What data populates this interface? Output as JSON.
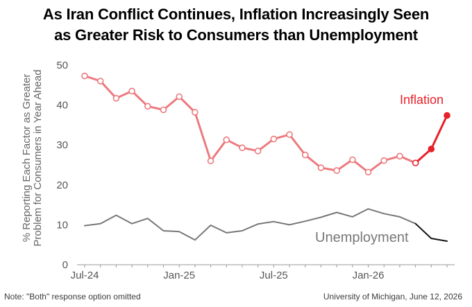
{
  "title": {
    "line1": "As Iran Conflict Continues, Inflation Increasingly Seen",
    "line2": "as Greater Risk to Consumers than Unemployment"
  },
  "footer": {
    "note": "Note: \"Both\" response option omitted",
    "source": "University of Michigan, June 12, 2026"
  },
  "chart_data": {
    "type": "line",
    "ylabel": [
      "% Reporting Each Factor as Greater",
      "Problem for Consumers in Year Ahead"
    ],
    "xlabel": "",
    "ylim": [
      0,
      50
    ],
    "yticks": [
      0,
      10,
      20,
      30,
      40,
      50
    ],
    "x_tick_labels": [
      {
        "label": "Jul-24",
        "index": 0
      },
      {
        "label": "Jan-25",
        "index": 6
      },
      {
        "label": "Jul-25",
        "index": 12
      },
      {
        "label": "Jan-26",
        "index": 18
      }
    ],
    "n_points": 24,
    "grid": false,
    "series": [
      {
        "name": "Inflation",
        "label_color": "#e8202a",
        "color": "#ec7a7e",
        "highlight_color": "#e8202a",
        "highlight_from_index": 21,
        "markers": true,
        "values": [
          47.3,
          46.0,
          41.7,
          43.5,
          39.7,
          38.8,
          42.1,
          38.2,
          26.0,
          31.3,
          29.3,
          28.5,
          31.5,
          32.6,
          27.5,
          24.3,
          23.6,
          26.3,
          23.2,
          26.1,
          27.2,
          25.5,
          29.0,
          37.4
        ]
      },
      {
        "name": "Unemployment",
        "label_color": "#777777",
        "color": "#777777",
        "highlight_color": "#111111",
        "highlight_from_index": 21,
        "markers": false,
        "values": [
          9.8,
          10.3,
          12.4,
          10.3,
          11.6,
          8.5,
          8.3,
          6.2,
          9.9,
          8.0,
          8.5,
          10.2,
          10.8,
          10.0,
          10.9,
          11.9,
          13.1,
          12.0,
          14.0,
          12.8,
          12.0,
          10.3,
          6.6,
          5.9
        ]
      }
    ]
  }
}
